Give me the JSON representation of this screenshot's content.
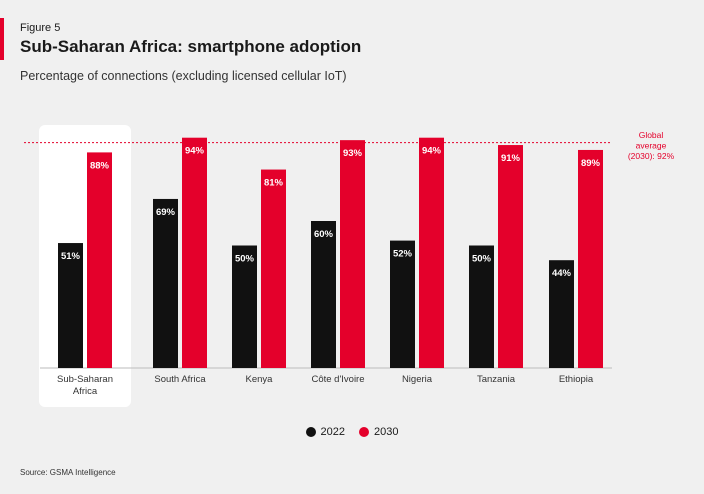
{
  "header": {
    "figure_label": "Figure 5",
    "title": "Sub-Saharan Africa: smartphone adoption",
    "subtitle": "Percentage of connections (excluding licensed cellular IoT)"
  },
  "source": "Source: GSMA Intelligence",
  "colors": {
    "series_2022": "#111111",
    "series_2030": "#e4002b",
    "accent": "#e4002b",
    "highlight_box": "#ffffff",
    "reference_line": "#e4002b"
  },
  "chart_data": {
    "type": "bar",
    "categories": [
      "Sub-Saharan Africa",
      "South Africa",
      "Kenya",
      "Côte d'Ivoire",
      "Nigeria",
      "Tanzania",
      "Ethiopia"
    ],
    "category_label_lines": [
      [
        "Sub-Saharan",
        "Africa"
      ],
      [
        "South Africa"
      ],
      [
        "Kenya"
      ],
      [
        "Côte d'Ivoire"
      ],
      [
        "Nigeria"
      ],
      [
        "Tanzania"
      ],
      [
        "Ethiopia"
      ]
    ],
    "series": [
      {
        "name": "2022",
        "values": [
          51,
          69,
          50,
          60,
          52,
          50,
          44
        ],
        "labels": [
          "51%",
          "69%",
          "50%",
          "60%",
          "52%",
          "50%",
          "44%"
        ]
      },
      {
        "name": "2030",
        "values": [
          88,
          94,
          81,
          93,
          94,
          91,
          89
        ],
        "labels": [
          "88%",
          "94%",
          "81%",
          "93%",
          "94%",
          "91%",
          "89%"
        ]
      }
    ],
    "reference_line": {
      "value": 92,
      "label_lines": [
        "Global",
        "average",
        "(2030): 92%"
      ]
    },
    "highlighted_category": "Sub-Saharan Africa",
    "ylim": [
      0,
      100
    ],
    "grid": false,
    "legend": "bottom-center"
  }
}
